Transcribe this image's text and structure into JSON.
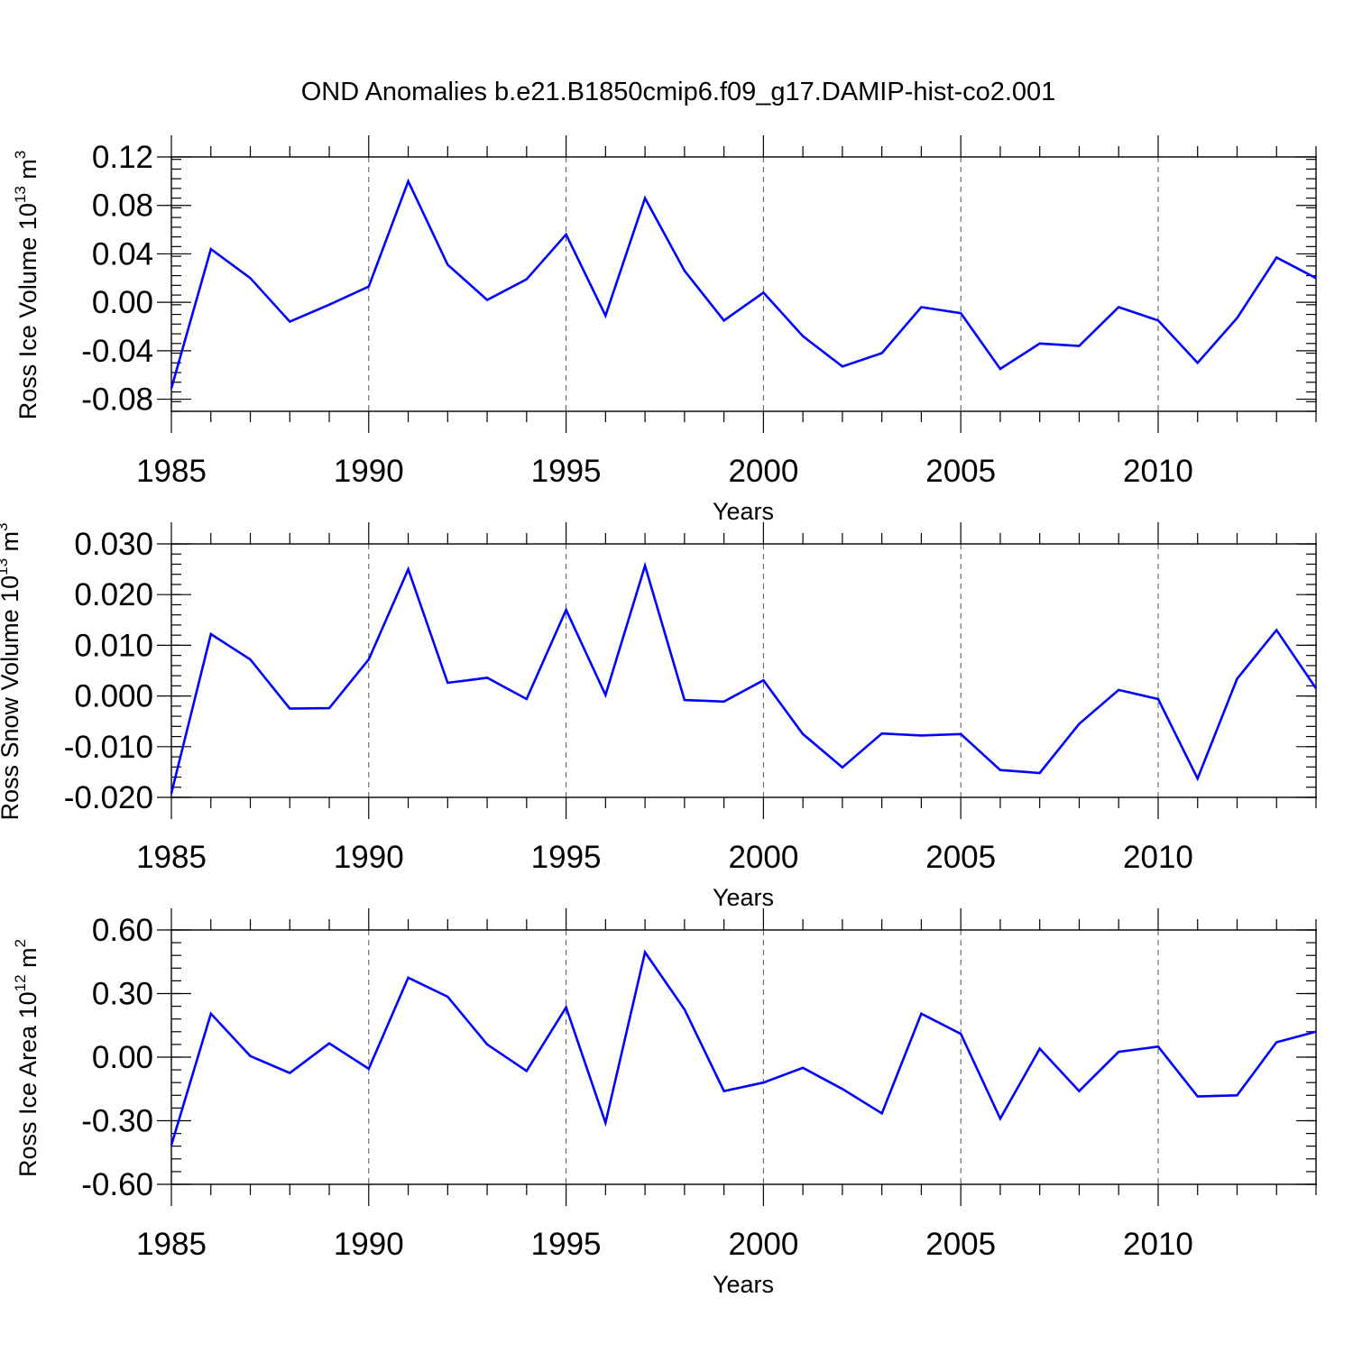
{
  "title": "OND Anomalies b.e21.B1850cmip6.f09_g17.DAMIP-hist-co2.001",
  "chart_data": [
    {
      "type": "line",
      "xlabel": "Years",
      "ylabel": {
        "text": "Ross Ice Volume 10",
        "exp": "13",
        "unit": " m",
        "unit_exp": "3"
      },
      "xlim": [
        1985,
        2014
      ],
      "ylim": [
        -0.09,
        0.12
      ],
      "x_ticks": [
        1985,
        1990,
        1995,
        2000,
        2005,
        2010
      ],
      "y_ticks": [
        -0.08,
        -0.04,
        0.0,
        0.04,
        0.08,
        0.12
      ],
      "y_tick_labels": [
        "-0.08",
        "-0.04",
        "0.00",
        "0.04",
        "0.08",
        "0.12"
      ],
      "y_minor_step": 0.008,
      "grid": "dashed vertical at major x ticks",
      "color": "#0000ff",
      "x": [
        1985,
        1986,
        1987,
        1988,
        1989,
        1990,
        1991,
        1992,
        1993,
        1994,
        1995,
        1996,
        1997,
        1998,
        1999,
        2000,
        2001,
        2002,
        2003,
        2004,
        2005,
        2006,
        2007,
        2008,
        2009,
        2010,
        2011,
        2012,
        2013,
        2014
      ],
      "values": [
        -0.071,
        0.044,
        0.02,
        -0.016,
        -0.002,
        0.013,
        0.1,
        0.031,
        0.002,
        0.019,
        0.056,
        -0.011,
        0.086,
        0.026,
        -0.015,
        0.008,
        -0.028,
        -0.053,
        -0.042,
        -0.004,
        -0.009,
        -0.055,
        -0.034,
        -0.036,
        -0.004,
        -0.015,
        -0.05,
        -0.013,
        0.037,
        0.02
      ]
    },
    {
      "type": "line",
      "xlabel": "Years",
      "ylabel": {
        "text": "Ross Snow Volume 10",
        "exp": "13",
        "unit": " m",
        "unit_exp": "3"
      },
      "xlim": [
        1985,
        2014
      ],
      "ylim": [
        -0.02,
        0.03
      ],
      "x_ticks": [
        1985,
        1990,
        1995,
        2000,
        2005,
        2010
      ],
      "y_ticks": [
        -0.02,
        -0.01,
        0.0,
        0.01,
        0.02,
        0.03
      ],
      "y_tick_labels": [
        "-0.020",
        "-0.010",
        "0.000",
        "0.010",
        "0.020",
        "0.030"
      ],
      "y_minor_step": 0.002,
      "grid": "dashed vertical at major x ticks",
      "color": "#0000ff",
      "x": [
        1985,
        1986,
        1987,
        1988,
        1989,
        1990,
        1991,
        1992,
        1993,
        1994,
        1995,
        1996,
        1997,
        1998,
        1999,
        2000,
        2001,
        2002,
        2003,
        2004,
        2005,
        2006,
        2007,
        2008,
        2009,
        2010,
        2011,
        2012,
        2013,
        2014
      ],
      "values": [
        -0.0192,
        0.0122,
        0.0072,
        -0.0025,
        -0.0024,
        0.0072,
        0.025,
        0.0026,
        0.0036,
        -0.0006,
        0.017,
        0.0002,
        0.0257,
        -0.0008,
        -0.0011,
        0.0031,
        -0.0075,
        -0.0141,
        -0.0074,
        -0.0078,
        -0.0075,
        -0.0146,
        -0.0152,
        -0.0055,
        0.0012,
        -0.0006,
        -0.0163,
        0.0034,
        0.013,
        0.0015
      ]
    },
    {
      "type": "line",
      "xlabel": "Years",
      "ylabel": {
        "text": "Ross Ice Area 10",
        "exp": "12",
        "unit": " m",
        "unit_exp": "2"
      },
      "xlim": [
        1985,
        2014
      ],
      "ylim": [
        -0.6,
        0.6
      ],
      "x_ticks": [
        1985,
        1990,
        1995,
        2000,
        2005,
        2010
      ],
      "y_ticks": [
        -0.6,
        -0.3,
        0.0,
        0.3,
        0.6
      ],
      "y_tick_labels": [
        "-0.60",
        "-0.30",
        "0.00",
        "0.30",
        "0.60"
      ],
      "y_minor_step": 0.06,
      "grid": "dashed vertical at major x ticks",
      "color": "#0000ff",
      "x": [
        1985,
        1986,
        1987,
        1988,
        1989,
        1990,
        1991,
        1992,
        1993,
        1994,
        1995,
        1996,
        1997,
        1998,
        1999,
        2000,
        2001,
        2002,
        2003,
        2004,
        2005,
        2006,
        2007,
        2008,
        2009,
        2010,
        2011,
        2012,
        2013,
        2014
      ],
      "values": [
        -0.415,
        0.205,
        0.005,
        -0.075,
        0.065,
        -0.055,
        0.375,
        0.285,
        0.06,
        -0.065,
        0.235,
        -0.31,
        0.495,
        0.225,
        -0.16,
        -0.12,
        -0.05,
        -0.15,
        -0.265,
        0.205,
        0.11,
        -0.29,
        0.04,
        -0.16,
        0.025,
        0.05,
        -0.185,
        -0.18,
        0.07,
        0.12
      ]
    }
  ]
}
